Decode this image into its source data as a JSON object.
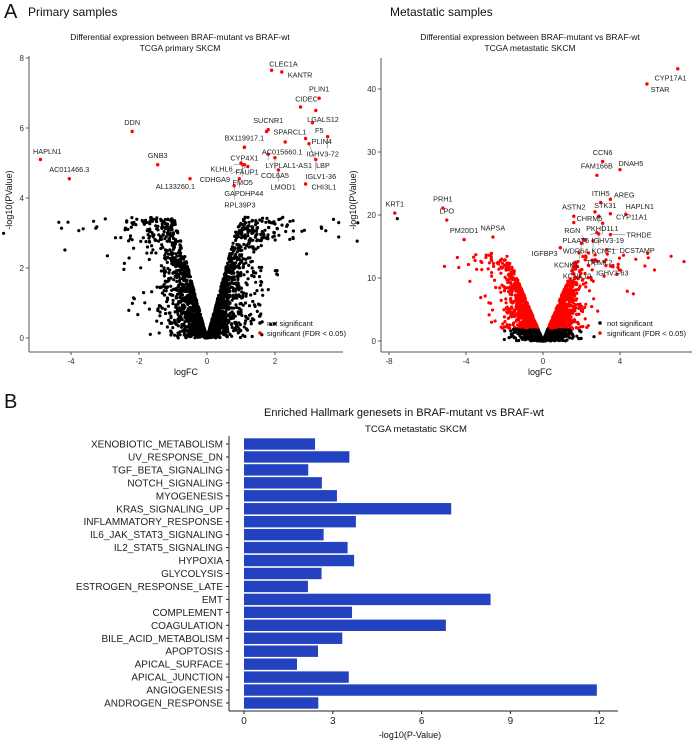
{
  "panels": {
    "a_letter": "A",
    "b_letter": "B",
    "primary_title": "Primary samples",
    "metastatic_title": "Metastatic samples"
  },
  "colors": {
    "significant": "#ff0000",
    "not_significant": "#000000",
    "bar": "#2342c0"
  },
  "chart_data": [
    {
      "type": "scatter",
      "title": "Differential expression between BRAF-mutant vs BRAF-wt",
      "subtitle": "TCGA primary SKCM",
      "xlabel": "logFC",
      "ylabel": "-log10(PValue)",
      "xticks": [
        "-4",
        "-2",
        "0",
        "2"
      ],
      "yticks": [
        "0",
        "2",
        "4",
        "6",
        "8"
      ],
      "legend": {
        "placement": "bottom-right",
        "entries": [
          "not significant",
          "significant (FDR < 0.05)"
        ]
      },
      "significance_threshold": 3.5,
      "labeled_points": [
        {
          "gene": "CLEC1A",
          "x": 1.9,
          "y": 7.65
        },
        {
          "gene": "KANTR",
          "x": 2.2,
          "y": 7.6
        },
        {
          "gene": "PLIN1",
          "x": 3.3,
          "y": 6.85
        },
        {
          "gene": "CIDEC",
          "x": 2.75,
          "y": 6.6
        },
        {
          "gene": "LGALS12",
          "x": 3.2,
          "y": 6.5
        },
        {
          "gene": "F5",
          "x": 3.1,
          "y": 6.15
        },
        {
          "gene": "SUCNR1",
          "x": 1.8,
          "y": 5.95
        },
        {
          "gene": "PLIN4",
          "x": 2.9,
          "y": 5.7
        },
        {
          "gene": "IGHV3-72",
          "x": 3.55,
          "y": 5.75
        },
        {
          "gene": "BX119917.1",
          "x": 1.1,
          "y": 5.45
        },
        {
          "gene": "SPARCL1",
          "x": 1.75,
          "y": 5.9
        },
        {
          "gene": "AC015660.1",
          "x": 2.3,
          "y": 5.6
        },
        {
          "gene": "CYP4X1",
          "x": 1.1,
          "y": 5.45
        },
        {
          "gene": "LYPLAL1-AS1",
          "x": 1.8,
          "y": 5.25
        },
        {
          "gene": "LBP",
          "x": 3.0,
          "y": 5.55
        },
        {
          "gene": "COL6A5",
          "x": 2.0,
          "y": 5.15
        },
        {
          "gene": "FAUP1",
          "x": 1.0,
          "y": 5.0
        },
        {
          "gene": "KLHL6",
          "x": 1.1,
          "y": 4.95
        },
        {
          "gene": "IGLV1-36",
          "x": 3.2,
          "y": 5.1
        },
        {
          "gene": "FMO5",
          "x": 1.05,
          "y": 4.95
        },
        {
          "gene": "CDHGA9",
          "x": 1.2,
          "y": 4.9
        },
        {
          "gene": "AL133260.1",
          "x": -0.5,
          "y": 4.55
        },
        {
          "gene": "GAPDHP44",
          "x": 0.95,
          "y": 4.55
        },
        {
          "gene": "LMOD1",
          "x": 2.1,
          "y": 4.8
        },
        {
          "gene": "CHI3L1",
          "x": 2.9,
          "y": 4.4
        },
        {
          "gene": "RPL39P3",
          "x": 0.8,
          "y": 4.35
        },
        {
          "gene": "DDN",
          "x": -2.2,
          "y": 5.9
        },
        {
          "gene": "GNB3",
          "x": -1.45,
          "y": 4.95
        },
        {
          "gene": "HAPLN1",
          "x": -4.9,
          "y": 5.1
        },
        {
          "gene": "AC011466.3",
          "x": -4.05,
          "y": 4.55
        }
      ]
    },
    {
      "type": "scatter",
      "title": "Differential expression between BRAF-mutant vs BRAF-wt",
      "subtitle": "TCGA metastatic SKCM",
      "xlabel": "logFC",
      "ylabel": "-log10(PValue)",
      "xticks": [
        "-8",
        "-4",
        "0",
        "4"
      ],
      "yticks": [
        "0",
        "10",
        "20",
        "30",
        "40"
      ],
      "legend": {
        "placement": "bottom-right",
        "entries": [
          "not significant",
          "significant (FDR < 0.05)"
        ]
      },
      "significance_threshold": 1.9,
      "labeled_points": [
        {
          "gene": "CYP17A1",
          "x": 7.0,
          "y": 43.2
        },
        {
          "gene": "STAR",
          "x": 5.4,
          "y": 40.8
        },
        {
          "gene": "CCN6",
          "x": 3.1,
          "y": 28.5
        },
        {
          "gene": "DNAH5",
          "x": 4.0,
          "y": 27.2
        },
        {
          "gene": "FAM166B",
          "x": 2.8,
          "y": 26.3
        },
        {
          "gene": "ITIH5",
          "x": 3.0,
          "y": 22.0
        },
        {
          "gene": "AREG",
          "x": 3.5,
          "y": 22.5
        },
        {
          "gene": "STK31",
          "x": 2.7,
          "y": 20.5
        },
        {
          "gene": "CYP11A1",
          "x": 3.5,
          "y": 20.2
        },
        {
          "gene": "HAPLN1",
          "x": 4.3,
          "y": 20.1
        },
        {
          "gene": "ASTN2",
          "x": 1.6,
          "y": 19.8
        },
        {
          "gene": "CHRM5",
          "x": 1.6,
          "y": 18.8
        },
        {
          "gene": "PKHD1L1",
          "x": 2.9,
          "y": 19.8
        },
        {
          "gene": "IGHV3-19",
          "x": 3.1,
          "y": 18.7
        },
        {
          "gene": "PLAAT5",
          "x": 2.8,
          "y": 17.2
        },
        {
          "gene": "KCNF1",
          "x": 2.9,
          "y": 17.0
        },
        {
          "gene": "WDR64",
          "x": 2.1,
          "y": 16.1
        },
        {
          "gene": "TRHDE",
          "x": 3.5,
          "y": 16.9
        },
        {
          "gene": "RGN",
          "x": 2.2,
          "y": 16.0
        },
        {
          "gene": "TRIML2",
          "x": 2.6,
          "y": 15.9
        },
        {
          "gene": "IGFBP3",
          "x": 0.9,
          "y": 14.8
        },
        {
          "gene": "KCNK3",
          "x": 2.0,
          "y": 15.5
        },
        {
          "gene": "DCSTAMP",
          "x": 3.3,
          "y": 14.5
        },
        {
          "gene": "KCNK10",
          "x": 1.6,
          "y": 12.3
        },
        {
          "gene": "IGHV3-63",
          "x": 2.6,
          "y": 12.8
        },
        {
          "gene": "KRT1",
          "x": -7.7,
          "y": 20.3
        },
        {
          "gene": "PRH1",
          "x": -5.2,
          "y": 21.1
        },
        {
          "gene": "LPO",
          "x": -5.0,
          "y": 19.2
        },
        {
          "gene": "NAPSA",
          "x": -2.6,
          "y": 16.5
        },
        {
          "gene": "PM20D1",
          "x": -4.1,
          "y": 16.1
        }
      ]
    },
    {
      "type": "bar",
      "orientation": "horizontal",
      "title": "Enriched Hallmark genesets in BRAF-mutant vs BRAF-wt",
      "subtitle": "TCGA metastatic SKCM",
      "xlabel": "-log10(P-Value)",
      "xticks": [
        "0",
        "3",
        "6",
        "9",
        "12"
      ],
      "xlim": [
        0,
        12.5
      ],
      "categories": [
        "XENOBIOTIC_METABOLISM",
        "UV_RESPONSE_DN",
        "TGF_BETA_SIGNALING",
        "NOTCH_SIGNALING",
        "MYOGENESIS",
        "KRAS_SIGNALING_UP",
        "INFLAMMATORY_RESPONSE",
        "IL6_JAK_STAT3_SIGNALING",
        "IL2_STAT5_SIGNALING",
        "HYPOXIA",
        "GLYCOLYSIS",
        "ESTROGEN_RESPONSE_LATE",
        "EMT",
        "COMPLEMENT",
        "COAGULATION",
        "BILE_ACID_METABOLISM",
        "APOPTOSIS",
        "APICAL_SURFACE",
        "APICAL_JUNCTION",
        "ANGIOGENESIS",
        "ANDROGEN_RESPONSE"
      ],
      "values": [
        2.4,
        3.56,
        2.17,
        2.63,
        3.14,
        7.0,
        3.78,
        2.69,
        3.5,
        3.72,
        2.62,
        2.16,
        8.33,
        3.65,
        6.82,
        3.32,
        2.5,
        1.79,
        3.54,
        11.92,
        2.51
      ]
    }
  ]
}
